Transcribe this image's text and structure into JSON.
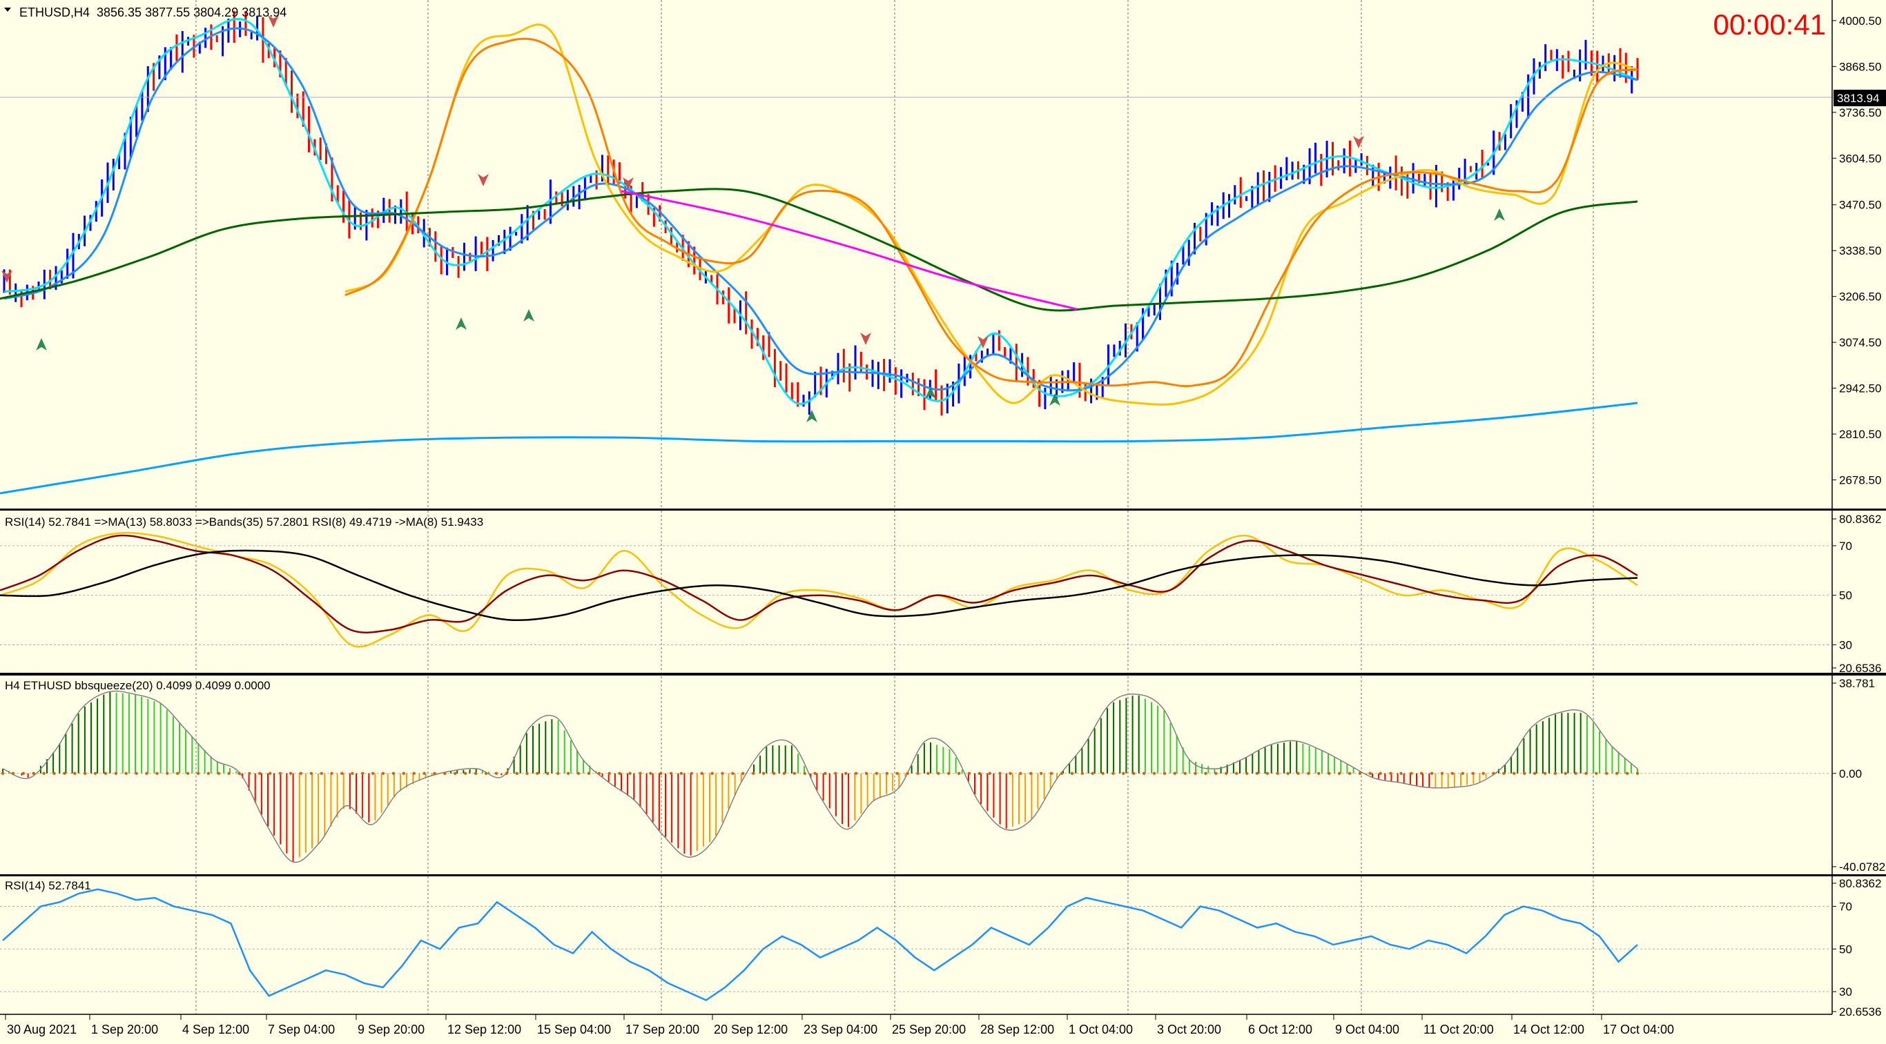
{
  "header": {
    "symbol_label": "ETHUSD,H4",
    "ohlc": "3856.35 3877.55 3804.29 3813.94",
    "timer": "00:00:41"
  },
  "colors": {
    "background": "#ffffe7",
    "bull_bar": "#0000ff",
    "bear_bar": "#ff0000",
    "ma_fast": "#00e5ff",
    "ma_mid": "#1e90ff",
    "ma_yellow": "#ffc000",
    "ma_orange": "#ff8000",
    "ma_green": "#006400",
    "ma_magenta": "#ff00ff",
    "ma_slow": "#00a2ff",
    "timer": "#ff0000",
    "rsi_line": "#1e90ff"
  },
  "chart_data": [
    {
      "type": "line",
      "panel": "price",
      "y_ticks": [
        "4000.50",
        "3868.50",
        "3736.50",
        "3604.50",
        "3470.50",
        "3338.50",
        "3206.50",
        "3074.50",
        "2942.50",
        "2810.50",
        "2678.50"
      ],
      "current_price_label": "3813.94",
      "ylim": [
        2610,
        4040
      ],
      "series": [
        {
          "role": "ma_fast",
          "color": "#00e5ff",
          "values": [
            3220,
            3260,
            3500,
            3860,
            3960,
            3990,
            3720,
            3420,
            3460,
            3300,
            3360,
            3480,
            3560,
            3470,
            3290,
            3130,
            2900,
            3000,
            2970,
            2910,
            3100,
            2930,
            2960,
            3150,
            3390,
            3500,
            3560,
            3610,
            3560,
            3520,
            3600,
            3860,
            3880,
            3830
          ]
        },
        {
          "role": "ma_mid",
          "color": "#1e90ff",
          "values": [
            3200,
            3240,
            3380,
            3780,
            3940,
            3970,
            3820,
            3480,
            3440,
            3340,
            3330,
            3430,
            3530,
            3480,
            3330,
            3190,
            3000,
            2990,
            2980,
            2940,
            3040,
            2950,
            2950,
            3080,
            3330,
            3440,
            3520,
            3580,
            3560,
            3530,
            3560,
            3760,
            3850,
            3830
          ]
        },
        {
          "role": "ma_yellow",
          "color": "#ffc000",
          "values": [
            3220,
            3280,
            3540,
            3900,
            3960,
            3960,
            3600,
            3400,
            3320,
            3280,
            3380,
            3520,
            3500,
            3400,
            3200,
            3020,
            2900,
            2980,
            2920,
            2900,
            2900,
            2950,
            3090,
            3400,
            3480,
            3540,
            3570,
            3520,
            3500,
            3500,
            3850,
            3860
          ]
        },
        {
          "role": "ma_orange",
          "color": "#ff8000",
          "values": [
            3210,
            3280,
            3520,
            3860,
            3940,
            3930,
            3800,
            3460,
            3360,
            3310,
            3320,
            3480,
            3510,
            3460,
            3280,
            3080,
            2980,
            2960,
            2960,
            2950,
            2960,
            2950,
            3000,
            3220,
            3420,
            3520,
            3560,
            3560,
            3530,
            3510,
            3540,
            3820,
            3860
          ]
        },
        {
          "role": "ma_green",
          "color": "#006400",
          "values": [
            3200,
            3250,
            3320,
            3400,
            3430,
            3440,
            3450,
            3460,
            3490,
            3510,
            3510,
            3440,
            3350,
            3250,
            3170,
            3180,
            3190,
            3200,
            3220,
            3260,
            3340,
            3450,
            3480
          ]
        },
        {
          "role": "ma_magenta",
          "color": "#ff00ff",
          "values": [
            3510,
            3440,
            3350,
            3250,
            3170
          ]
        },
        {
          "role": "ma_slow",
          "color": "#00a2ff",
          "values": [
            2640,
            2700,
            2760,
            2790,
            2800,
            2800,
            2790,
            2790,
            2790,
            2790,
            2800,
            2830,
            2860,
            2900
          ]
        }
      ]
    },
    {
      "type": "line",
      "panel": "rsi_composite",
      "title": "RSI(14) 52.7841  =>MA(13) 58.8033  =>Bands(35) 57.2801  RSI(8) 49.4719  ->MA(8) 51.9433",
      "y_ticks": [
        "80.8362",
        "70",
        "50",
        "30",
        "20.6536"
      ],
      "ylim": [
        20.6536,
        80.8362
      ],
      "series": [
        {
          "role": "rsi8",
          "color": "#ffc000",
          "values": [
            50,
            56,
            70,
            75,
            74,
            70,
            66,
            62,
            50,
            30,
            34,
            42,
            36,
            58,
            60,
            53,
            68,
            54,
            42,
            37,
            50,
            52,
            49,
            44,
            50,
            45,
            53,
            56,
            60,
            52,
            52,
            68,
            74,
            64,
            62,
            56,
            50,
            52,
            48,
            46,
            68,
            64,
            54
          ]
        },
        {
          "role": "rsi_ma",
          "color": "#8b0000",
          "values": [
            52,
            58,
            68,
            74,
            72,
            68,
            66,
            60,
            48,
            36,
            36,
            40,
            40,
            52,
            58,
            56,
            60,
            56,
            48,
            40,
            48,
            50,
            48,
            44,
            50,
            47,
            52,
            55,
            58,
            54,
            52,
            65,
            72,
            68,
            62,
            58,
            54,
            50,
            48,
            48,
            62,
            66,
            58
          ]
        },
        {
          "role": "bands",
          "color": "#000000",
          "values": [
            50,
            50,
            55,
            62,
            67,
            68,
            66,
            58,
            50,
            44,
            40,
            42,
            48,
            52,
            54,
            52,
            47,
            42,
            42,
            45,
            48,
            50,
            54,
            60,
            64,
            66,
            66,
            64,
            60,
            56,
            54,
            56,
            57
          ]
        }
      ]
    },
    {
      "type": "bar",
      "panel": "bbsqueeze",
      "title": "H4 ETHUSD bbsqueeze(20) 0.4099 0.4099 0.0000",
      "y_ticks": [
        "38.781",
        "0.00",
        "-40.0782"
      ],
      "ylim": [
        -40.0782,
        38.781
      ],
      "values": [
        2,
        -2,
        10,
        28,
        35,
        34,
        30,
        18,
        6,
        0,
        -22,
        -38,
        -30,
        -14,
        -22,
        -8,
        -2,
        1,
        2,
        -1,
        20,
        24,
        6,
        -4,
        -12,
        -26,
        -36,
        -28,
        -4,
        12,
        12,
        -10,
        -24,
        -12,
        -6,
        14,
        10,
        -12,
        -24,
        -20,
        -2,
        12,
        30,
        34,
        28,
        6,
        2,
        6,
        12,
        14,
        10,
        4,
        -2,
        -4,
        -6,
        -6,
        -4,
        4,
        20,
        26,
        26,
        12,
        2
      ]
    },
    {
      "type": "line",
      "panel": "rsi14",
      "title": "RSI(14) 52.7841",
      "y_ticks": [
        "80.8362",
        "70",
        "50",
        "30",
        "20.6536"
      ],
      "ylim": [
        20.6536,
        80.8362
      ],
      "values": [
        54,
        62,
        70,
        72,
        76,
        78,
        76,
        73,
        74,
        70,
        68,
        66,
        62,
        40,
        28,
        32,
        36,
        40,
        38,
        34,
        32,
        42,
        54,
        50,
        60,
        62,
        72,
        66,
        60,
        52,
        48,
        58,
        50,
        44,
        40,
        34,
        30,
        26,
        32,
        40,
        50,
        56,
        52,
        46,
        50,
        54,
        60,
        54,
        46,
        40,
        46,
        52,
        60,
        56,
        52,
        60,
        70,
        74,
        72,
        70,
        68,
        64,
        60,
        70,
        68,
        64,
        60,
        62,
        58,
        56,
        52,
        54,
        56,
        52,
        50,
        54,
        52,
        48,
        56,
        66,
        70,
        68,
        64,
        62,
        56,
        44,
        52
      ]
    }
  ],
  "time_axis": [
    "30 Aug 2021",
    "1 Sep 20:00",
    "4 Sep 12:00",
    "7 Sep 04:00",
    "9 Sep 20:00",
    "12 Sep 12:00",
    "15 Sep 04:00",
    "17 Sep 20:00",
    "20 Sep 12:00",
    "23 Sep 04:00",
    "25 Sep 20:00",
    "28 Sep 12:00",
    "1 Oct 04:00",
    "3 Oct 20:00",
    "6 Oct 12:00",
    "9 Oct 04:00",
    "11 Oct 20:00",
    "14 Oct 12:00",
    "17 Oct 04:00"
  ]
}
